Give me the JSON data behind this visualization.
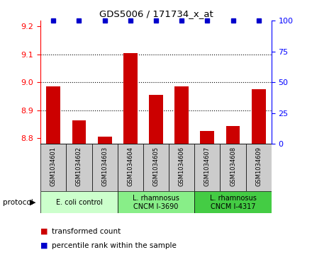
{
  "title": "GDS5006 / 171734_x_at",
  "samples": [
    "GSM1034601",
    "GSM1034602",
    "GSM1034603",
    "GSM1034604",
    "GSM1034605",
    "GSM1034606",
    "GSM1034607",
    "GSM1034608",
    "GSM1034609"
  ],
  "red_values": [
    8.985,
    8.865,
    8.805,
    9.105,
    8.955,
    8.985,
    8.825,
    8.845,
    8.975
  ],
  "blue_values": [
    100,
    100,
    100,
    100,
    100,
    100,
    100,
    100,
    100
  ],
  "ylim_left": [
    8.78,
    9.22
  ],
  "ylim_right": [
    0,
    100
  ],
  "yticks_left": [
    8.8,
    8.9,
    9.0,
    9.1,
    9.2
  ],
  "yticks_right": [
    0,
    25,
    50,
    75,
    100
  ],
  "bar_color": "#cc0000",
  "dot_color": "#0000cc",
  "protocol_groups": [
    {
      "label": "E. coli control",
      "samples": [
        0,
        1,
        2
      ],
      "color": "#ccffcc"
    },
    {
      "label": "L. rhamnosus\nCNCM I-3690",
      "samples": [
        3,
        4,
        5
      ],
      "color": "#88ee88"
    },
    {
      "label": "L. rhamnosus\nCNCM I-4317",
      "samples": [
        6,
        7,
        8
      ],
      "color": "#44cc44"
    }
  ],
  "tick_bg_color": "#cccccc",
  "legend_red_label": "transformed count",
  "legend_blue_label": "percentile rank within the sample",
  "protocol_label": "protocol",
  "base_value": 8.78,
  "gridlines": [
    8.9,
    9.0,
    9.1
  ]
}
